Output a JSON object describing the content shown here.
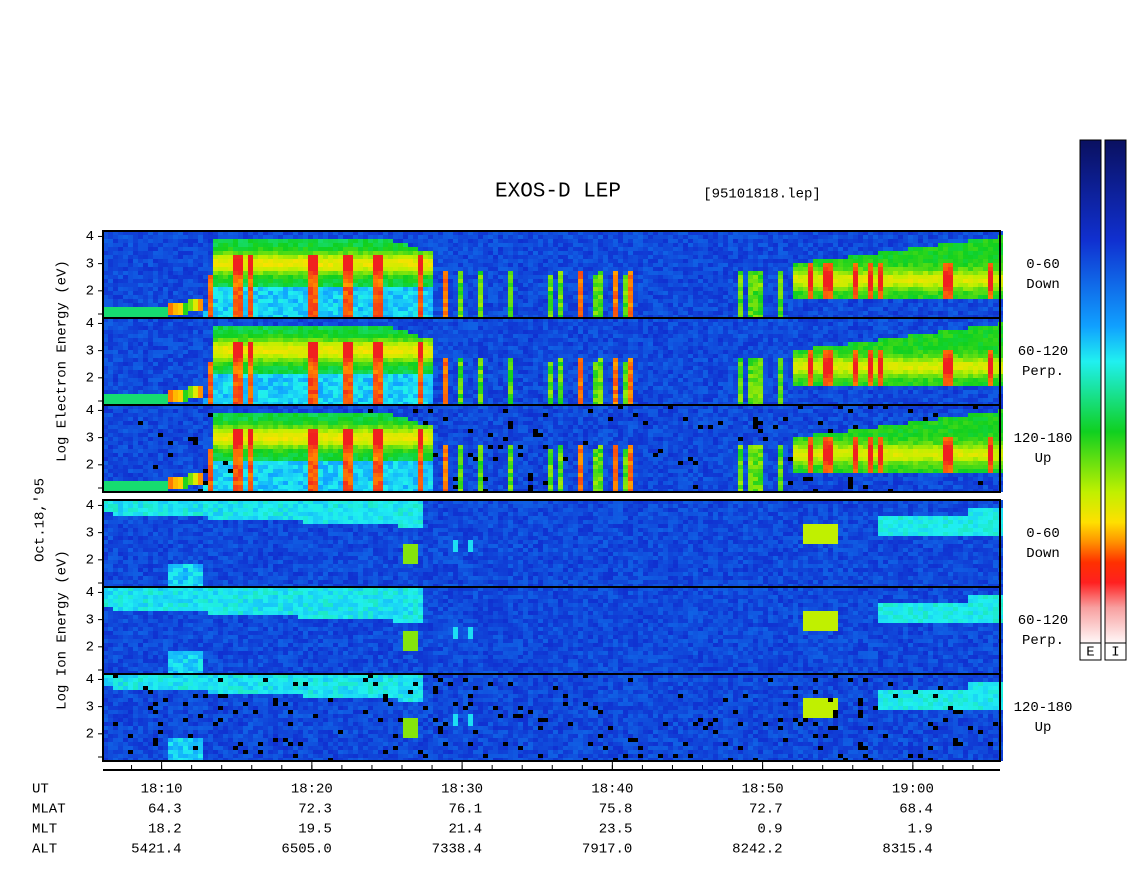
{
  "chart_data": {
    "type": "spectrogram",
    "title": "EXOS-D LEP",
    "subtitle": "[95101818.lep]",
    "date_label": "Oct.18,'95",
    "ylim": [
      1,
      4.2
    ],
    "yticks": [
      2,
      3,
      4
    ],
    "xlim": [
      1086.1,
      1145.8
    ],
    "xticks": [
      {
        "value": 1090,
        "label": "18:10"
      },
      {
        "value": 1100,
        "label": "18:20"
      },
      {
        "value": 1110,
        "label": "18:30"
      },
      {
        "value": 1120,
        "label": "18:40"
      },
      {
        "value": 1130,
        "label": "18:50"
      },
      {
        "value": 1140,
        "label": "19:00"
      }
    ],
    "x_label": "UT",
    "groups": [
      {
        "species": "electron",
        "ylabel": "Log Electron Energy (eV)",
        "colorbar_label": "E",
        "panels": [
          {
            "label": [
              "0-60",
              "Down"
            ]
          },
          {
            "label": [
              "60-120",
              "Perp."
            ]
          },
          {
            "label": [
              "120-180",
              "Up"
            ]
          }
        ]
      },
      {
        "species": "ion",
        "ylabel": "Log Ion Energy (eV)",
        "colorbar_label": "I",
        "panels": [
          {
            "label": [
              "0-60",
              "Down"
            ]
          },
          {
            "label": [
              "60-120",
              "Perp."
            ]
          },
          {
            "label": [
              "120-180",
              "Up"
            ]
          }
        ]
      }
    ],
    "table": {
      "rows": [
        {
          "name": "MLAT",
          "values": [
            "64.3",
            "72.3",
            "76.1",
            "75.8",
            "72.7",
            "68.4"
          ]
        },
        {
          "name": "MLT",
          "values": [
            "18.2",
            "19.5",
            "21.4",
            "23.5",
            "0.9",
            "1.9"
          ]
        },
        {
          "name": "ALT",
          "values": [
            "5421.4",
            "6505.0",
            "7338.4",
            "7917.0",
            "8242.2",
            "8315.4"
          ]
        }
      ]
    }
  }
}
